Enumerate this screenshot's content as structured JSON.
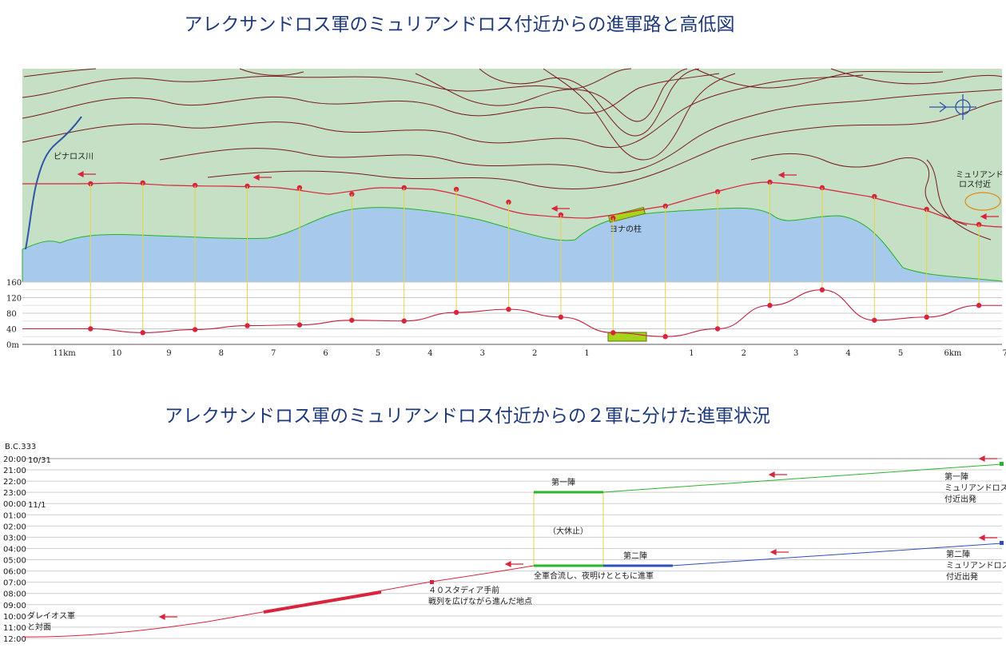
{
  "titles": {
    "map": "アレクサンドロス軍のミュリアンドロス付近からの進軍路と高低図",
    "timeline": "アレクサンドロス軍のミュリアンドロス付近からの２軍に分けた進軍状況"
  },
  "map": {
    "river_label": "ピナロス川",
    "pillar_label": "ヨナの柱",
    "myriandros_label_line1": "ミュリアンド",
    "myriandros_label_line2": "ロス付近",
    "colors": {
      "land": "#c5e0c5",
      "sea": "#a7c9ec",
      "coast": "#22b422",
      "route": "#d8243c",
      "contour": "#7a1a1a",
      "river": "#2f55a8",
      "pillar": "#a6d41c",
      "link": "#e6d34a"
    }
  },
  "chart_data": [
    {
      "type": "line",
      "title": "",
      "xlabel": "",
      "ylabel": "",
      "ylim": [
        0,
        160
      ],
      "yticks": [
        "160",
        "120",
        "80",
        "40",
        "0m"
      ],
      "x_tick_labels": [
        {
          "label": "11km",
          "x": -11
        },
        {
          "label": "10",
          "x": -10
        },
        {
          "label": "9",
          "x": -9
        },
        {
          "label": "8",
          "x": -8
        },
        {
          "label": "7",
          "x": -7
        },
        {
          "label": "6",
          "x": -6
        },
        {
          "label": "5",
          "x": -5
        },
        {
          "label": "4",
          "x": -4
        },
        {
          "label": "3",
          "x": -3
        },
        {
          "label": "2",
          "x": -2
        },
        {
          "label": "1",
          "x": -1
        },
        {
          "label": "1",
          "x": 1
        },
        {
          "label": "2",
          "x": 2
        },
        {
          "label": "3",
          "x": 3
        },
        {
          "label": "4",
          "x": 4
        },
        {
          "label": "5",
          "x": 5
        },
        {
          "label": "6km",
          "x": 6
        },
        {
          "label": "7",
          "x": 7
        }
      ],
      "series": [
        {
          "x": [
            -10.5,
            -9.5,
            -8.5,
            -7.5,
            -6.5,
            -5.5,
            -4.5,
            -3.5,
            -2.5,
            -1.5,
            -0.5,
            0.5,
            1.5,
            2.5,
            3.5,
            4.5,
            5.5,
            6.5
          ],
          "y": [
            40,
            30,
            38,
            48,
            50,
            62,
            60,
            82,
            90,
            70,
            30,
            20,
            40,
            100,
            140,
            62,
            70,
            100
          ]
        }
      ]
    },
    {
      "type": "line",
      "title": "",
      "y_label": "B.C.333",
      "yticks": [
        "20:00",
        "21:00",
        "22:00",
        "23:00",
        "00:00",
        "01:00",
        "02:00",
        "03:00",
        "04:00",
        "05:00",
        "06:00",
        "07:00",
        "08:00",
        "09:00",
        "10:00",
        "11:00",
        "12:00"
      ],
      "date_labels": [
        {
          "label": "10/31",
          "hour_index": 0
        },
        {
          "label": "11/1",
          "hour_index": 4
        }
      ],
      "series": [
        {
          "name": "第一陣",
          "color": "#2ab42a",
          "points": [
            [
              1,
              20.6
            ],
            [
              0.6,
              23.0
            ]
          ]
        },
        {
          "name": "第二陣",
          "color": "#2c4fb8",
          "points": [
            [
              1,
              32.0
            ],
            [
              0.6,
              35.0
            ]
          ]
        },
        {
          "name": "",
          "color": "#d8243c",
          "points": [
            [
              0.53,
              35.0
            ],
            [
              0.43,
              37.5
            ],
            [
              0.21,
              42.3
            ],
            [
              0.0,
              47.0
            ]
          ]
        }
      ]
    }
  ],
  "timeline": {
    "first_army_label": "第一陣",
    "first_army_depart_1": "第一陣",
    "first_army_depart_2": "ミュリアンドロス",
    "first_army_depart_3": "付近出発",
    "second_army_label": "第二陣",
    "second_army_depart_1": "第二陣",
    "second_army_depart_2": "ミュリアンドロス",
    "second_army_depart_3": "付近出発",
    "rest_label": "（大休止）",
    "merge_label": "全軍合流し、夜明けとともに進軍",
    "stadia_label_1": "４０スタディア手前",
    "stadia_label_2": "戦列を広げながら進んだ地点",
    "darius_label_1": "ダレイオス軍",
    "darius_label_2": "と対面"
  }
}
